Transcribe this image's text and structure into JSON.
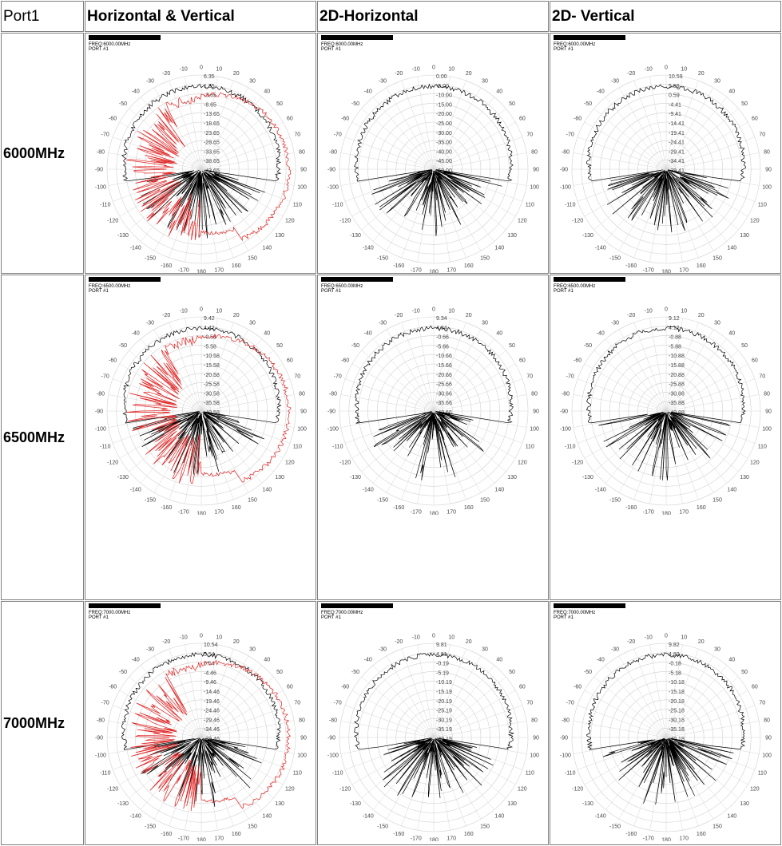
{
  "header": {
    "port": "Port1",
    "col1": "Horizontal & Vertical",
    "col2": "2D-Horizontal",
    "col3": "2D- Vertical"
  },
  "rows": [
    {
      "label": "6000MHz"
    },
    {
      "label": "6500MHz"
    },
    {
      "label": "7000MHz"
    }
  ],
  "colors": {
    "series_black": "#000000",
    "series_red": "#e02020",
    "grid": "#c8c8c8",
    "border": "#808080"
  },
  "chart_data": [
    {
      "type": "polar",
      "freq": "FREQ:6000.00MHz",
      "port": "PORT #1",
      "kind": "hv",
      "rmax": 6.35,
      "rlabels": [
        "6.35",
        "1.35",
        "-3.65",
        "-8.65",
        "-13.65",
        "-18.65",
        "-23.65",
        "-28.65",
        "-33.65",
        "-38.65",
        "-43.65"
      ],
      "angle_ticks": [
        "0",
        "10",
        "20",
        "30",
        "40",
        "50",
        "60",
        "70",
        "80",
        "90",
        "100",
        "110",
        "120",
        "130",
        "140",
        "150",
        "160",
        "170",
        "180",
        "-170",
        "-160",
        "-150",
        "-140",
        "-130",
        "-120",
        "-110",
        "-100",
        "-90",
        "-80",
        "-70",
        "-60",
        "-50",
        "-40",
        "-30",
        "-20",
        "-10"
      ]
    },
    {
      "type": "polar",
      "freq": "FREQ:6000.00MHz",
      "port": "PORT #1",
      "kind": "h",
      "rmax": 0.0,
      "rlabels": [
        "0.00",
        "-5.00",
        "-10.00",
        "-15.00",
        "-20.00",
        "-25.00",
        "-30.00",
        "-35.00",
        "-40.00",
        "-45.00",
        "-50.00"
      ]
    },
    {
      "type": "polar",
      "freq": "FREQ:6000.00MHz",
      "port": "PORT #1",
      "kind": "v",
      "rmax": 10.59,
      "rlabels": [
        "10.59",
        "5.59",
        "0.59",
        "-4.41",
        "-9.41",
        "-14.41",
        "-19.41",
        "-24.41",
        "-29.41",
        "-34.41",
        "-39.41"
      ]
    },
    {
      "type": "polar",
      "freq": "FREQ:6500.00MHz",
      "port": "PORT #1",
      "kind": "hv",
      "rmax": 9.42,
      "rlabels": [
        "9.42",
        "4.42",
        "-0.58",
        "-5.58",
        "-10.58",
        "-15.58",
        "-20.58",
        "-25.58",
        "-30.58",
        "-35.58",
        "-40.58"
      ]
    },
    {
      "type": "polar",
      "freq": "FREQ:6500.00MHz",
      "port": "PORT #1",
      "kind": "h",
      "rmax": 9.34,
      "rlabels": [
        "9.34",
        "4.34",
        "-0.66",
        "-5.66",
        "-10.66",
        "-15.66",
        "-20.66",
        "-25.66",
        "-30.66",
        "-35.66",
        "-40.66"
      ]
    },
    {
      "type": "polar",
      "freq": "FREQ:6500.00MHz",
      "port": "PORT #1",
      "kind": "v",
      "rmax": 9.12,
      "rlabels": [
        "9.12",
        "4.12",
        "-0.88",
        "-5.88",
        "-10.88",
        "-15.88",
        "-20.88",
        "-25.88",
        "-30.88",
        "-35.88",
        "-40.88"
      ]
    },
    {
      "type": "polar",
      "freq": "FREQ:7000.00MHz",
      "port": "PORT #1",
      "kind": "hv",
      "rmax": 10.54,
      "rlabels": [
        "10.54",
        "5.54",
        "0.54",
        "-4.46",
        "-9.46",
        "-14.46",
        "-19.46",
        "-24.46",
        "-29.46",
        "-34.46",
        "-39.46"
      ]
    },
    {
      "type": "polar",
      "freq": "FREQ:7000.00MHz",
      "port": "PORT #1",
      "kind": "h",
      "rmax": 9.81,
      "rlabels": [
        "9.81",
        "4.81",
        "-0.19",
        "-5.19",
        "-10.19",
        "-15.19",
        "-20.19",
        "-25.19",
        "-30.19",
        "-35.19",
        "-40.19"
      ]
    },
    {
      "type": "polar",
      "freq": "FREQ:7000.00MHz",
      "port": "PORT #1",
      "kind": "v",
      "rmax": 9.82,
      "rlabels": [
        "9.82",
        "4.82",
        "-0.18",
        "-5.18",
        "-10.18",
        "-15.18",
        "-20.18",
        "-25.18",
        "-30.18",
        "-35.18",
        "-40.18"
      ]
    }
  ]
}
